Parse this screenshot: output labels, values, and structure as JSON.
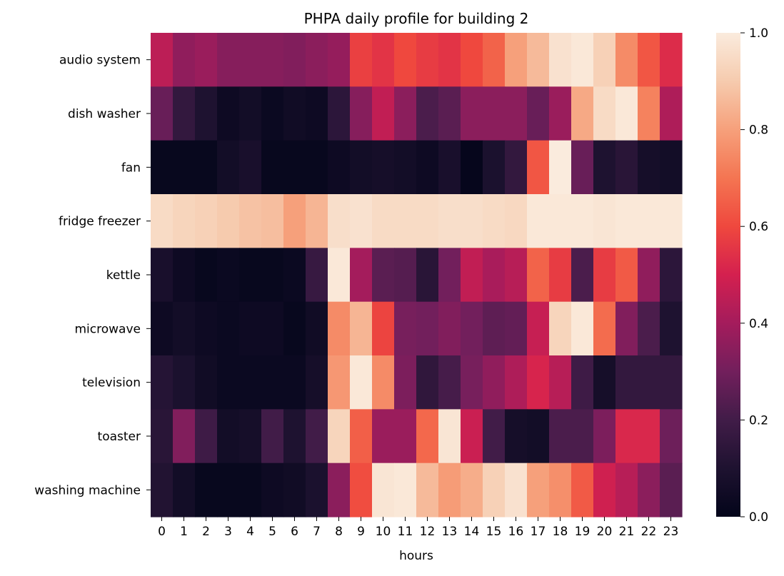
{
  "chart_data": {
    "type": "heatmap",
    "title": "PHPA daily profile for building 2",
    "xlabel": "hours",
    "ylabel": "",
    "x": [
      "0",
      "1",
      "2",
      "3",
      "4",
      "5",
      "6",
      "7",
      "8",
      "9",
      "10",
      "11",
      "12",
      "13",
      "14",
      "15",
      "16",
      "17",
      "18",
      "19",
      "20",
      "21",
      "22",
      "23"
    ],
    "y": [
      "audio system",
      "dish washer",
      "fan",
      "fridge freezer",
      "kettle",
      "microwave",
      "television",
      "toaster",
      "washing machine"
    ],
    "values": [
      [
        0.45,
        0.36,
        0.38,
        0.34,
        0.34,
        0.34,
        0.33,
        0.35,
        0.37,
        0.58,
        0.55,
        0.6,
        0.57,
        0.55,
        0.6,
        0.66,
        0.8,
        0.86,
        0.97,
        0.99,
        0.92,
        0.75,
        0.63,
        0.53
      ],
      [
        0.28,
        0.16,
        0.1,
        0.04,
        0.06,
        0.03,
        0.05,
        0.04,
        0.14,
        0.34,
        0.46,
        0.35,
        0.22,
        0.25,
        0.35,
        0.35,
        0.35,
        0.28,
        0.38,
        0.82,
        0.95,
        0.99,
        0.73,
        0.42
      ],
      [
        0.02,
        0.02,
        0.02,
        0.06,
        0.08,
        0.02,
        0.02,
        0.02,
        0.04,
        0.06,
        0.07,
        0.06,
        0.04,
        0.08,
        0.01,
        0.09,
        0.16,
        0.63,
        1.0,
        0.28,
        0.1,
        0.13,
        0.07,
        0.06
      ],
      [
        0.95,
        0.93,
        0.92,
        0.9,
        0.88,
        0.87,
        0.8,
        0.85,
        0.96,
        0.97,
        0.95,
        0.95,
        0.95,
        0.96,
        0.96,
        0.95,
        0.94,
        0.99,
        0.99,
        0.99,
        0.98,
        0.99,
        0.99,
        0.99
      ],
      [
        0.08,
        0.04,
        0.02,
        0.03,
        0.02,
        0.02,
        0.03,
        0.17,
        0.99,
        0.4,
        0.25,
        0.24,
        0.13,
        0.3,
        0.46,
        0.41,
        0.44,
        0.66,
        0.57,
        0.22,
        0.57,
        0.64,
        0.36,
        0.14
      ],
      [
        0.04,
        0.06,
        0.04,
        0.03,
        0.04,
        0.04,
        0.02,
        0.05,
        0.75,
        0.85,
        0.59,
        0.31,
        0.3,
        0.33,
        0.3,
        0.26,
        0.27,
        0.47,
        0.93,
        0.99,
        0.68,
        0.33,
        0.22,
        0.1
      ],
      [
        0.12,
        0.09,
        0.05,
        0.03,
        0.03,
        0.03,
        0.03,
        0.07,
        0.78,
        0.99,
        0.75,
        0.32,
        0.15,
        0.21,
        0.31,
        0.36,
        0.42,
        0.51,
        0.44,
        0.19,
        0.07,
        0.16,
        0.16,
        0.16
      ],
      [
        0.13,
        0.33,
        0.19,
        0.06,
        0.07,
        0.2,
        0.1,
        0.2,
        0.93,
        0.65,
        0.38,
        0.38,
        0.67,
        0.98,
        0.48,
        0.2,
        0.07,
        0.06,
        0.22,
        0.22,
        0.32,
        0.52,
        0.52,
        0.29
      ],
      [
        0.11,
        0.06,
        0.02,
        0.02,
        0.02,
        0.04,
        0.05,
        0.09,
        0.35,
        0.61,
        0.98,
        0.99,
        0.86,
        0.79,
        0.83,
        0.92,
        0.97,
        0.8,
        0.76,
        0.64,
        0.49,
        0.44,
        0.35,
        0.25
      ]
    ],
    "colorbar": {
      "min": 0.0,
      "max": 1.0,
      "ticks": [
        "0.0",
        "0.2",
        "0.4",
        "0.6",
        "0.8",
        "1.0"
      ]
    },
    "colormap": "rocket",
    "grid": false
  }
}
